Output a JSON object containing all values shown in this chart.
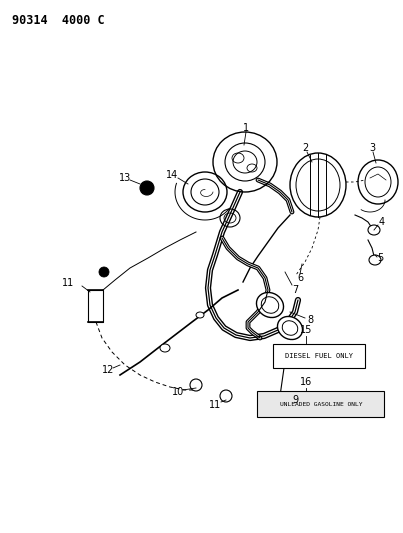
{
  "title": "90314  4000 C",
  "background_color": "#ffffff",
  "label_fontsize": 7,
  "box15_label": "DIESEL FUEL ONLY",
  "box16_label": "UNLEADED GASOLINE ONLY"
}
